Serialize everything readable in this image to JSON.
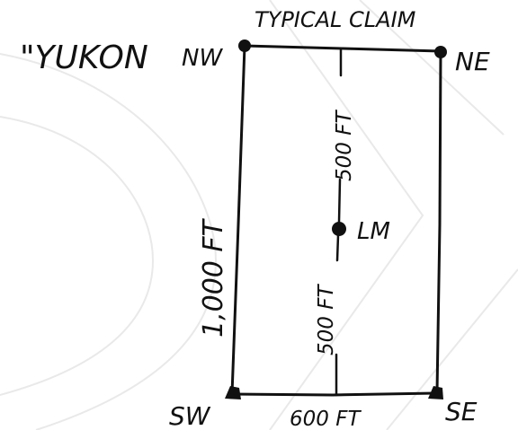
{
  "diagram": {
    "heading_left": "\"YUKON",
    "heading_top": "TYPICAL CLAIM",
    "corners": {
      "nw": "NW",
      "ne": "NE",
      "sw": "SW",
      "se": "SE"
    },
    "center_marker": "LM",
    "dimensions": {
      "upper_half": "500 FT",
      "lower_half": "500 FT",
      "length": "1,000 FT",
      "width": "600 FT"
    }
  },
  "colors": {
    "ink": "#111111",
    "watermark": "#e9e9e9",
    "background": "#ffffff"
  }
}
